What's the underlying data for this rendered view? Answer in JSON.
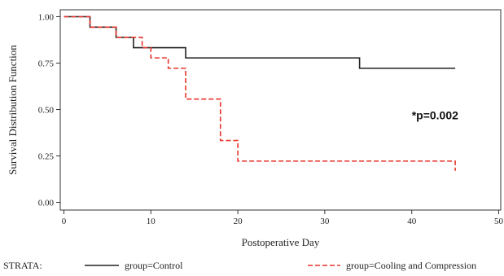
{
  "chart_data": {
    "type": "line",
    "style": "step",
    "xlabel": "Postoperative Day",
    "ylabel": "Survival Distribution Function",
    "xlim": [
      0,
      50
    ],
    "ylim": [
      0,
      1
    ],
    "x_ticks": [
      "0",
      "10",
      "20",
      "30",
      "40",
      "50"
    ],
    "y_ticks": [
      "0.00",
      "0.25",
      "0.50",
      "0.75",
      "1.00"
    ],
    "x_tick_values": [
      0,
      10,
      20,
      30,
      40,
      50
    ],
    "y_tick_values": [
      0,
      0.25,
      0.5,
      0.75,
      1.0
    ],
    "grid": false,
    "legend_position": "bottom",
    "legend_title": "STRATA:",
    "annotation": "*p=0.002",
    "annotation_pos": [
      40,
      0.5
    ],
    "series": [
      {
        "name": "group=Control",
        "color": "#222222",
        "dash": "solid",
        "points": [
          [
            0,
            1.0
          ],
          [
            3,
            0.944
          ],
          [
            6,
            0.889
          ],
          [
            8,
            0.833
          ],
          [
            14,
            0.778
          ],
          [
            34,
            0.722
          ],
          [
            45,
            0.722
          ]
        ]
      },
      {
        "name": "group=Cooling and Compression",
        "color": "#e8342b",
        "dash": "dashed",
        "points": [
          [
            0,
            1.0
          ],
          [
            3,
            0.944
          ],
          [
            6,
            0.889
          ],
          [
            9,
            0.833
          ],
          [
            10,
            0.778
          ],
          [
            12,
            0.722
          ],
          [
            14,
            0.556
          ],
          [
            18,
            0.333
          ],
          [
            20,
            0.222
          ],
          [
            45,
            0.222
          ],
          [
            45,
            0.17
          ]
        ]
      }
    ]
  }
}
